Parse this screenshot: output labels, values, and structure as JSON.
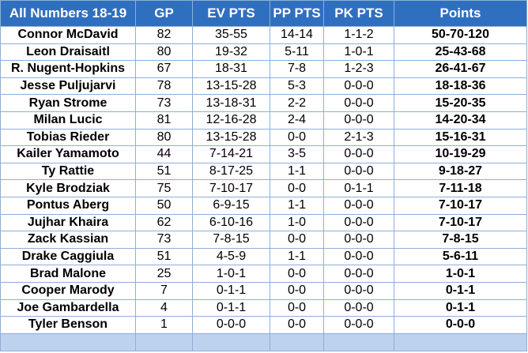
{
  "headers": [
    "All Numbers 18-19",
    "GP",
    "EV PTS",
    "PP PTS",
    "PK PTS",
    "Points"
  ],
  "rows": [
    [
      "Connor McDavid",
      "82",
      "35-55",
      "14-14",
      "1-1-2",
      "50-70-120"
    ],
    [
      "Leon Draisaitl",
      "80",
      "19-32",
      "5-11",
      "1-0-1",
      "25-43-68"
    ],
    [
      "R. Nugent-Hopkins",
      "67",
      "18-31",
      "7-8",
      "1-2-3",
      "26-41-67"
    ],
    [
      "Jesse Puljujarvi",
      "78",
      "13-15-28",
      "5-3",
      "0-0-0",
      "18-18-36"
    ],
    [
      "Ryan Strome",
      "73",
      "13-18-31",
      "2-2",
      "0-0-0",
      "15-20-35"
    ],
    [
      "Milan Lucic",
      "81",
      "12-16-28",
      "2-4",
      "0-0-0",
      "14-20-34"
    ],
    [
      "Tobias Rieder",
      "80",
      "13-15-28",
      "0-0",
      "2-1-3",
      "15-16-31"
    ],
    [
      "Kailer Yamamoto",
      "44",
      "7-14-21",
      "3-5",
      "0-0-0",
      "10-19-29"
    ],
    [
      "Ty Rattie",
      "51",
      "8-17-25",
      "1-1",
      "0-0-0",
      "9-18-27"
    ],
    [
      "Kyle Brodziak",
      "75",
      "7-10-17",
      "0-0",
      "0-1-1",
      "7-11-18"
    ],
    [
      "Pontus Aberg",
      "50",
      "6-9-15",
      "1-1",
      "0-0-0",
      "7-10-17"
    ],
    [
      "Jujhar Khaira",
      "62",
      "6-10-16",
      "1-0",
      "0-0-0",
      "7-10-17"
    ],
    [
      "Zack Kassian",
      "73",
      "7-8-15",
      "0-0",
      "0-0-0",
      "7-8-15"
    ],
    [
      "Drake Caggiula",
      "51",
      "4-5-9",
      "1-1",
      "0-0-0",
      "5-6-11"
    ],
    [
      "Brad Malone",
      "25",
      "1-0-1",
      "0-0",
      "0-0-0",
      "1-0-1"
    ],
    [
      "Cooper Marody",
      "7",
      "0-1-1",
      "0-0",
      "0-0-0",
      "0-1-1"
    ],
    [
      "Joe Gambardella",
      "4",
      "0-1-1",
      "0-0",
      "0-0-0",
      "0-1-1"
    ],
    [
      "Tyler Benson",
      "1",
      "0-0-0",
      "0-0",
      "0-0-0",
      "0-0-0"
    ]
  ],
  "colors": {
    "header_bg": "#2f6fc0",
    "header_text": "#ffffff",
    "grid": "#8db0d6",
    "footer_bg": "#bcd2ee"
  }
}
